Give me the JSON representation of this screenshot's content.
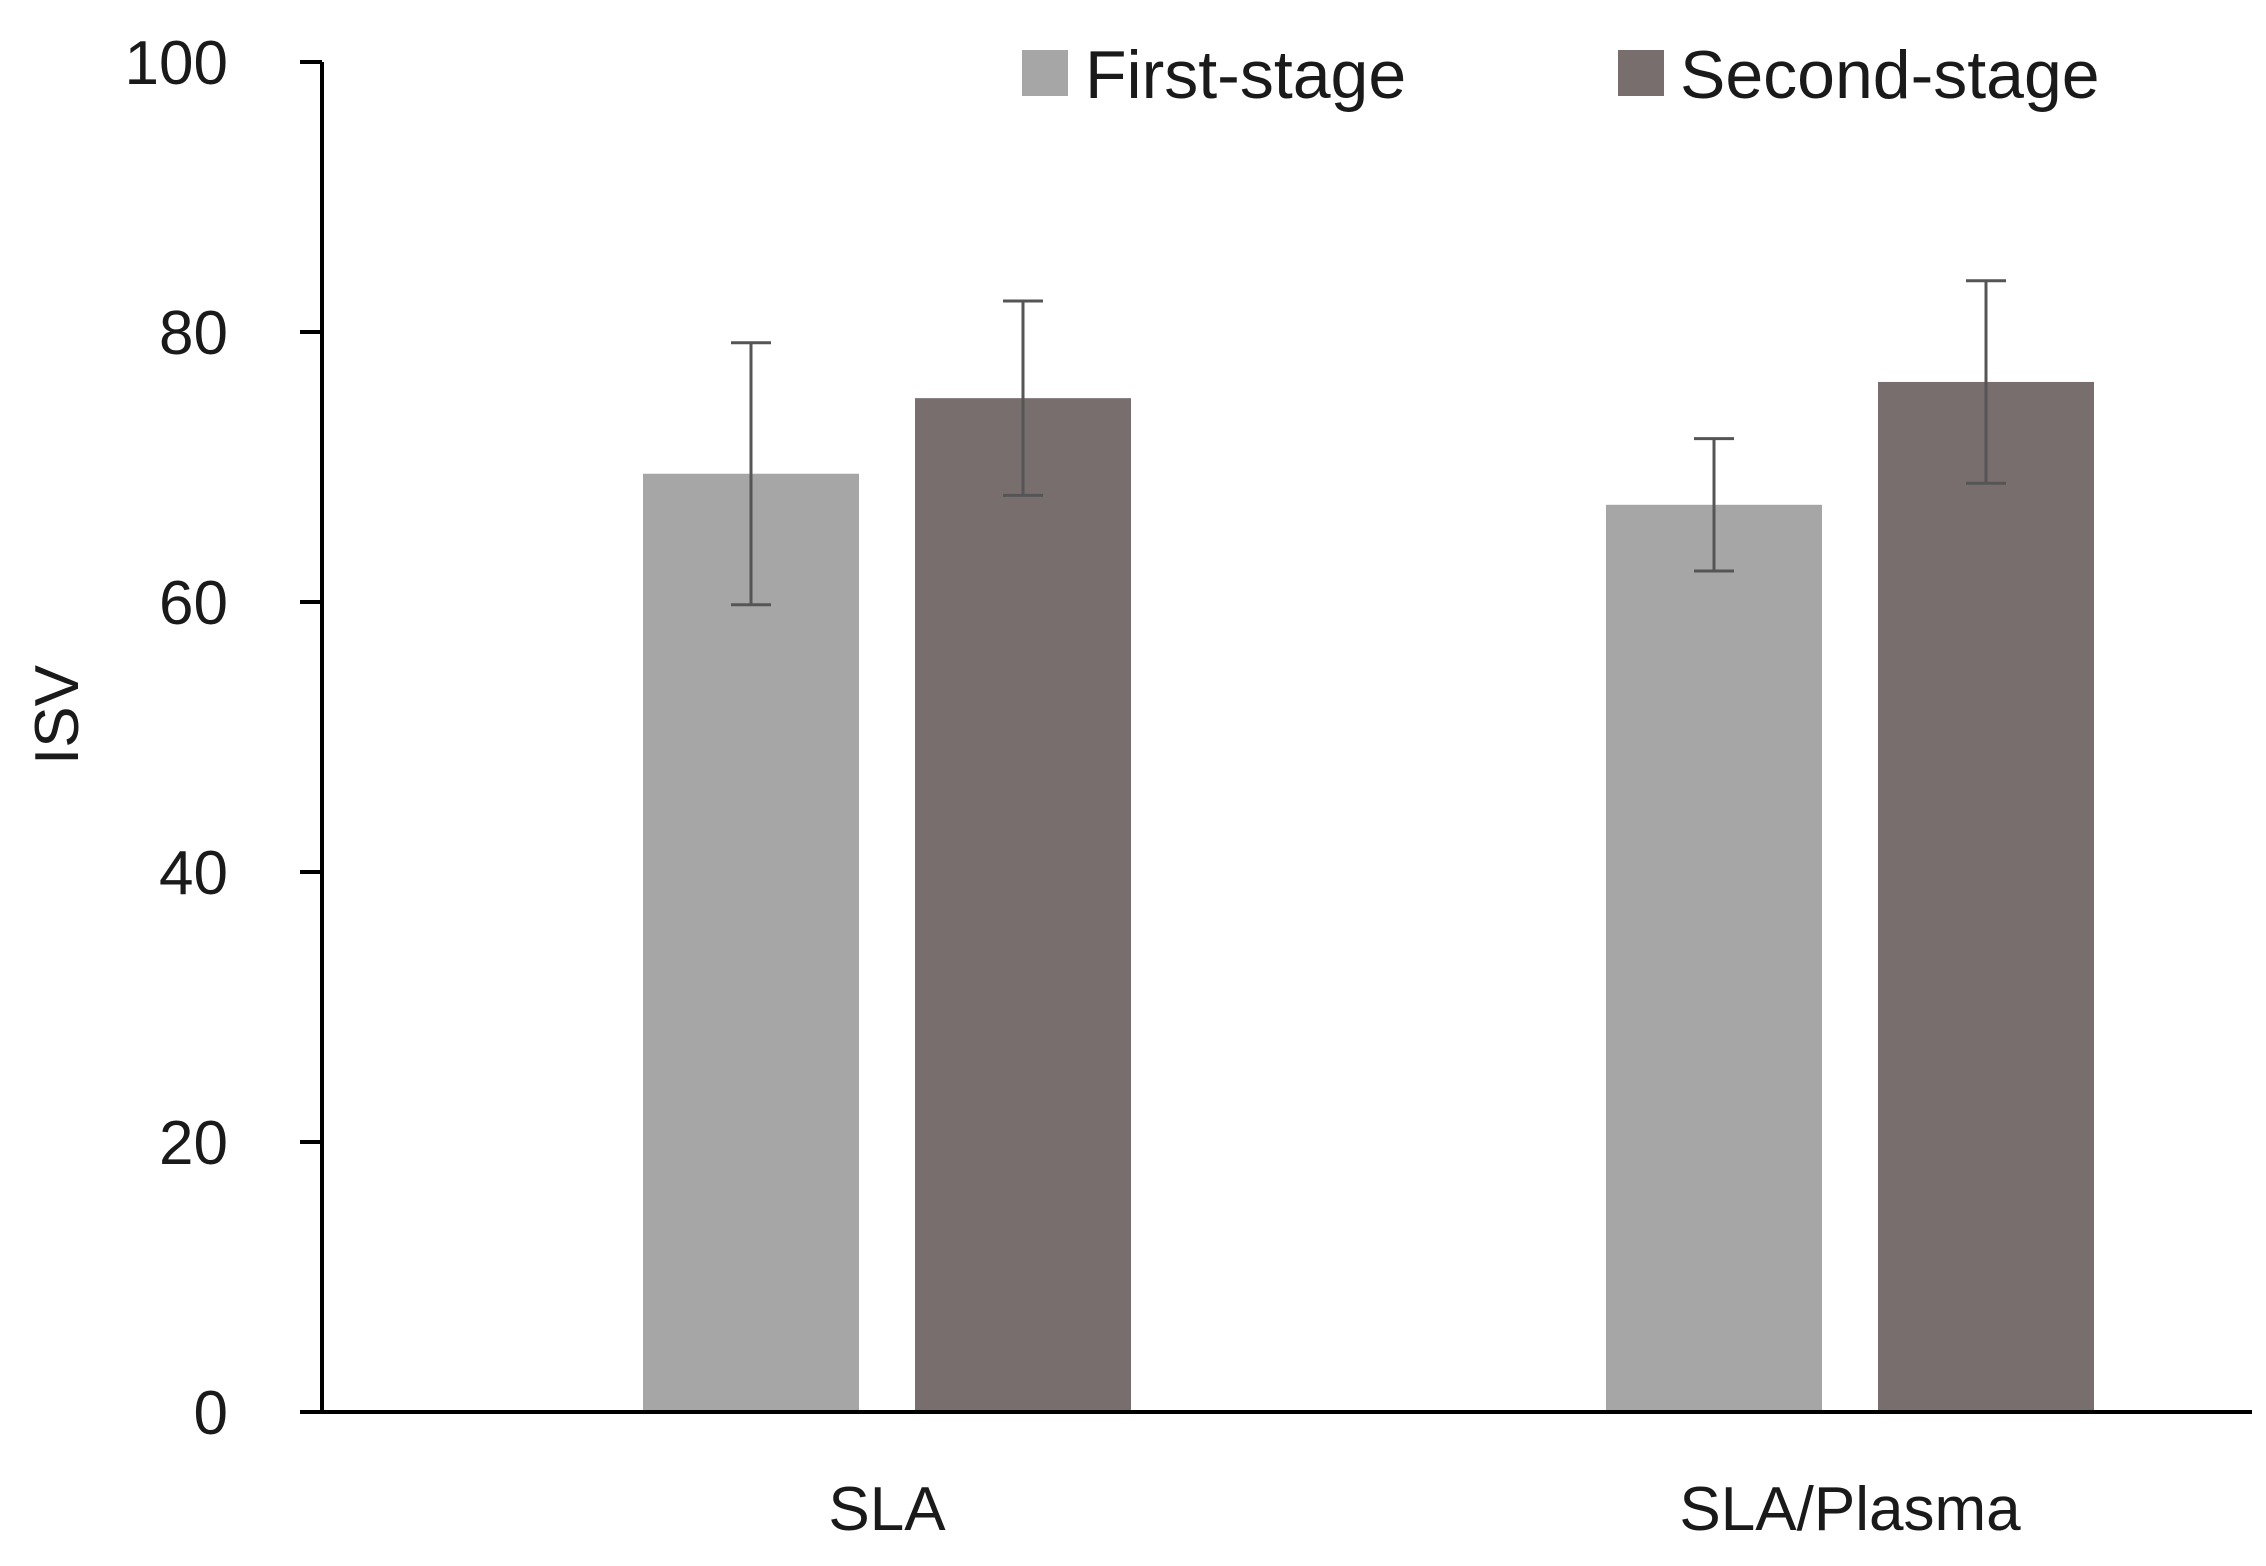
{
  "chart_data": {
    "type": "bar",
    "title": "",
    "xlabel": "",
    "ylabel": "ISV",
    "ylim": [
      0,
      100
    ],
    "yticks": [
      "0",
      "20",
      "40",
      "60",
      "80",
      "100"
    ],
    "categories": [
      "SLA",
      "SLA/Plasma"
    ],
    "series": [
      {
        "name": "First-stage",
        "color": "#a6a6a6",
        "values": [
          69.5,
          67.2
        ],
        "error": [
          9.7,
          4.9
        ]
      },
      {
        "name": "Second-stage",
        "color": "#786e6e",
        "values": [
          75.1,
          76.3
        ],
        "error": [
          7.2,
          7.5
        ]
      }
    ],
    "legend_position": "top-right",
    "grid": false
  }
}
